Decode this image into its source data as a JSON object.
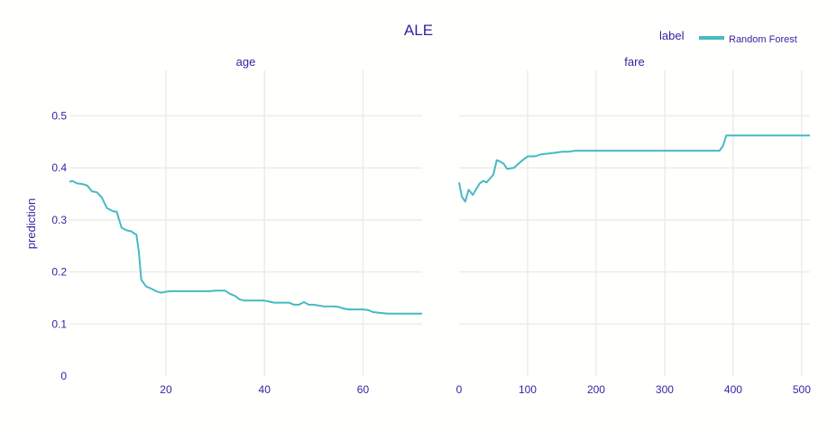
{
  "chart_data": {
    "type": "line",
    "title": "ALE",
    "ylabel": "prediction",
    "legend": {
      "title": "label",
      "position": "top-right",
      "items": [
        "Random Forest"
      ]
    },
    "colors": {
      "series": "#46bac2",
      "text": "#371ea3",
      "grid": "#ececec",
      "background": "#fffffd"
    },
    "grid": true,
    "ylim": [
      0,
      0.57
    ],
    "y_ticks": [
      0,
      0.1,
      0.2,
      0.3,
      0.4,
      0.5
    ],
    "y_tick_labels": [
      "0",
      "0.1",
      "0.2",
      "0.3",
      "0.4",
      "0.5"
    ],
    "panels": [
      {
        "facet_label": "age",
        "xlim": [
          0.42,
          72
        ],
        "x_ticks": [
          20,
          40,
          60
        ],
        "x_tick_labels": [
          "20",
          "40",
          "60"
        ],
        "series": [
          {
            "name": "Random Forest",
            "x": [
              0.42,
              1,
              2,
              3,
              4,
              5,
              6,
              7,
              8,
              9,
              9.5,
              10,
              11,
              12,
              13,
              13.5,
              14,
              14.5,
              15,
              16,
              17,
              18,
              19,
              20,
              21,
              22,
              24,
              26,
              28,
              29,
              30,
              31,
              32,
              33,
              34,
              35,
              36,
              38,
              40,
              41,
              42,
              44,
              45,
              46,
              47,
              48,
              49,
              50,
              52,
              54,
              55,
              56,
              57,
              58,
              60,
              61,
              62,
              63,
              65,
              70,
              72
            ],
            "y": [
              0.373,
              0.375,
              0.37,
              0.369,
              0.366,
              0.355,
              0.353,
              0.343,
              0.323,
              0.318,
              0.316,
              0.316,
              0.285,
              0.28,
              0.278,
              0.274,
              0.272,
              0.24,
              0.185,
              0.172,
              0.168,
              0.163,
              0.16,
              0.162,
              0.163,
              0.163,
              0.163,
              0.163,
              0.163,
              0.163,
              0.164,
              0.164,
              0.164,
              0.158,
              0.154,
              0.147,
              0.145,
              0.145,
              0.145,
              0.143,
              0.141,
              0.141,
              0.141,
              0.137,
              0.137,
              0.142,
              0.137,
              0.137,
              0.134,
              0.134,
              0.133,
              0.13,
              0.128,
              0.128,
              0.128,
              0.127,
              0.123,
              0.122,
              0.12,
              0.12,
              0.12
            ]
          }
        ]
      },
      {
        "facet_label": "fare",
        "xlim": [
          0,
          512
        ],
        "x_ticks": [
          0,
          100,
          200,
          300,
          400,
          500
        ],
        "x_tick_labels": [
          "0",
          "100",
          "200",
          "300",
          "400",
          "500"
        ],
        "series": [
          {
            "name": "Random Forest",
            "x": [
              0,
              4,
              9,
              14,
              20,
              30,
              35,
              40,
              50,
              55,
              60,
              65,
              70,
              80,
              90,
              100,
              110,
              115,
              120,
              140,
              150,
              160,
              170,
              200,
              210,
              220,
              240,
              250,
              260,
              300,
              360,
              380,
              385,
              390,
              400,
              512
            ],
            "y": [
              0.372,
              0.345,
              0.335,
              0.358,
              0.348,
              0.37,
              0.375,
              0.372,
              0.387,
              0.415,
              0.412,
              0.408,
              0.398,
              0.4,
              0.412,
              0.422,
              0.422,
              0.424,
              0.426,
              0.429,
              0.431,
              0.431,
              0.433,
              0.433,
              0.433,
              0.433,
              0.433,
              0.433,
              0.433,
              0.433,
              0.433,
              0.433,
              0.442,
              0.462,
              0.462,
              0.462
            ]
          }
        ]
      }
    ]
  }
}
